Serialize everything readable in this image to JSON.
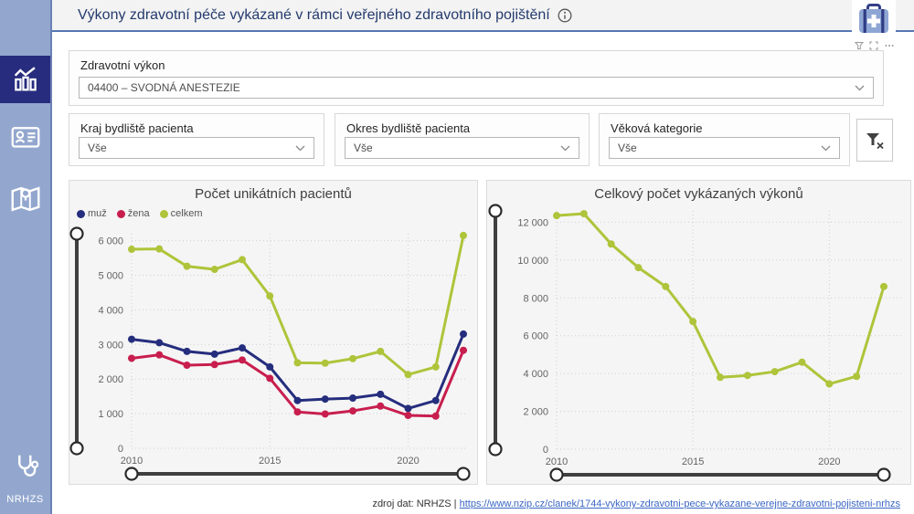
{
  "sidebar": {
    "items": [
      {
        "name": "dashboard",
        "icon": "bar-chart-icon",
        "active": true
      },
      {
        "name": "patient-card",
        "icon": "id-card-icon",
        "active": false
      },
      {
        "name": "map",
        "icon": "map-icon",
        "active": false
      }
    ],
    "footer_icon": "stethoscope-icon",
    "footer_label": "NRHZS"
  },
  "header": {
    "title": "Výkony zdravotní péče vykázané v rámci veřejného zdravotního pojištění",
    "info_icon": "info-circle-icon",
    "logo_icon": "medical-bag-icon",
    "toolbar_icons": [
      "filter-icon",
      "focus-mode-icon",
      "more-options-icon"
    ]
  },
  "filters": {
    "procedure": {
      "label": "Zdravotní výkon",
      "value": "04400 – SVODNÁ ANESTEZIE"
    },
    "kraj": {
      "label": "Kraj bydliště pacienta",
      "value": "Vše"
    },
    "okres": {
      "label": "Okres bydliště pacienta",
      "value": "Vše"
    },
    "vek": {
      "label": "Věková kategorie",
      "value": "Vše"
    },
    "clear_button_icon": "clear-filter-icon"
  },
  "chart_data": [
    {
      "type": "line",
      "title": "Počet unikátních pacientů",
      "x": [
        2010,
        2011,
        2012,
        2013,
        2014,
        2015,
        2016,
        2017,
        2018,
        2019,
        2020,
        2021,
        2022
      ],
      "series": [
        {
          "name": "muž",
          "color": "#252d7d",
          "values": [
            3150,
            3050,
            2800,
            2720,
            2900,
            2350,
            1380,
            1420,
            1450,
            1560,
            1150,
            1380,
            3300
          ]
        },
        {
          "name": "žena",
          "color": "#c81e4e",
          "values": [
            2600,
            2700,
            2400,
            2420,
            2550,
            2020,
            1050,
            990,
            1080,
            1220,
            950,
            930,
            2830
          ]
        },
        {
          "name": "celkem",
          "color": "#afc43a",
          "values": [
            5750,
            5760,
            5260,
            5170,
            5450,
            4400,
            2470,
            2460,
            2590,
            2800,
            2130,
            2350,
            6150
          ]
        }
      ],
      "ylim": [
        0,
        6200
      ],
      "yticks": [
        0,
        1000,
        2000,
        3000,
        4000,
        5000,
        6000
      ],
      "xticks": [
        2010,
        2015,
        2020
      ],
      "grid": "dotted",
      "legend_position": "top-left"
    },
    {
      "type": "line",
      "title": "Celkový počet vykázaných výkonů",
      "x": [
        2010,
        2011,
        2012,
        2013,
        2014,
        2015,
        2016,
        2017,
        2018,
        2019,
        2020,
        2021,
        2022
      ],
      "series": [
        {
          "name": "celkem",
          "color": "#afc43a",
          "values": [
            12350,
            12450,
            10850,
            9600,
            8600,
            6750,
            3800,
            3900,
            4100,
            4600,
            3450,
            3850,
            8600
          ]
        }
      ],
      "ylim": [
        0,
        12600
      ],
      "yticks": [
        0,
        2000,
        4000,
        6000,
        8000,
        10000,
        12000
      ],
      "xticks": [
        2010,
        2015,
        2020
      ],
      "grid": "dotted",
      "legend_position": "none"
    }
  ],
  "footer": {
    "source_text": "zdroj dat: NRHZS | ",
    "link_text": "https://www.nzip.cz/clanek/1744-vykony-zdravotni-pece-vykazane-verejne-zdravotni-pojisteni-nrhzs"
  },
  "colors": {
    "sidebar_bg": "#93a7ce",
    "sidebar_active": "#272c7e",
    "header_underline": "#5577b2",
    "title_text": "#233a6d",
    "muz": "#252d7d",
    "zena": "#c81e4e",
    "celkem": "#afc43a",
    "link": "#3a66c4"
  }
}
